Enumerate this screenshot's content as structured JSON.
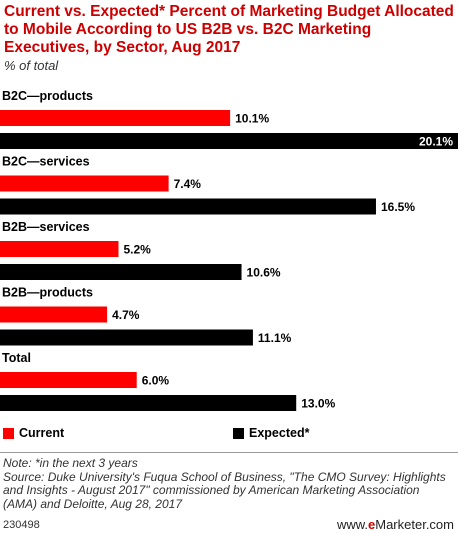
{
  "title": "Current vs. Expected* Percent of Marketing Budget Allocated to Mobile According to US B2B vs. B2C Marketing Executives, by Sector, Aug 2017",
  "subtitle": "% of total",
  "colors": {
    "current": "#ff0000",
    "expected": "#000000"
  },
  "chart_data": {
    "type": "bar",
    "orientation": "horizontal",
    "categories": [
      "B2C—products",
      "B2C—services",
      "B2B—services",
      "B2B—products",
      "Total"
    ],
    "series": [
      {
        "name": "Current",
        "values": [
          10.1,
          7.4,
          5.2,
          4.7,
          6.0
        ]
      },
      {
        "name": "Expected*",
        "values": [
          20.1,
          16.5,
          10.6,
          11.1,
          13.0
        ]
      }
    ],
    "value_labels": [
      [
        "10.1%",
        "7.4%",
        "5.2%",
        "4.7%",
        "6.0%"
      ],
      [
        "20.1%",
        "16.5%",
        "10.6%",
        "11.1%",
        "13.0%"
      ]
    ],
    "xlim": [
      0,
      20.1
    ],
    "legend": "bottom",
    "grid": false
  },
  "legend": {
    "items": [
      "Current",
      "Expected*"
    ]
  },
  "footer": {
    "note": "Note: *in the next 3 years",
    "source": "Source: Duke University's Fuqua School of Business, \"The CMO Survey: Highlights and Insights - August 2017\" commissioned by American Marketing Association (AMA) and Deloitte, Aug 28, 2017",
    "id": "230498",
    "brand_prefix": "www.",
    "brand_e": "e",
    "brand_suffix": "Marketer.com"
  }
}
